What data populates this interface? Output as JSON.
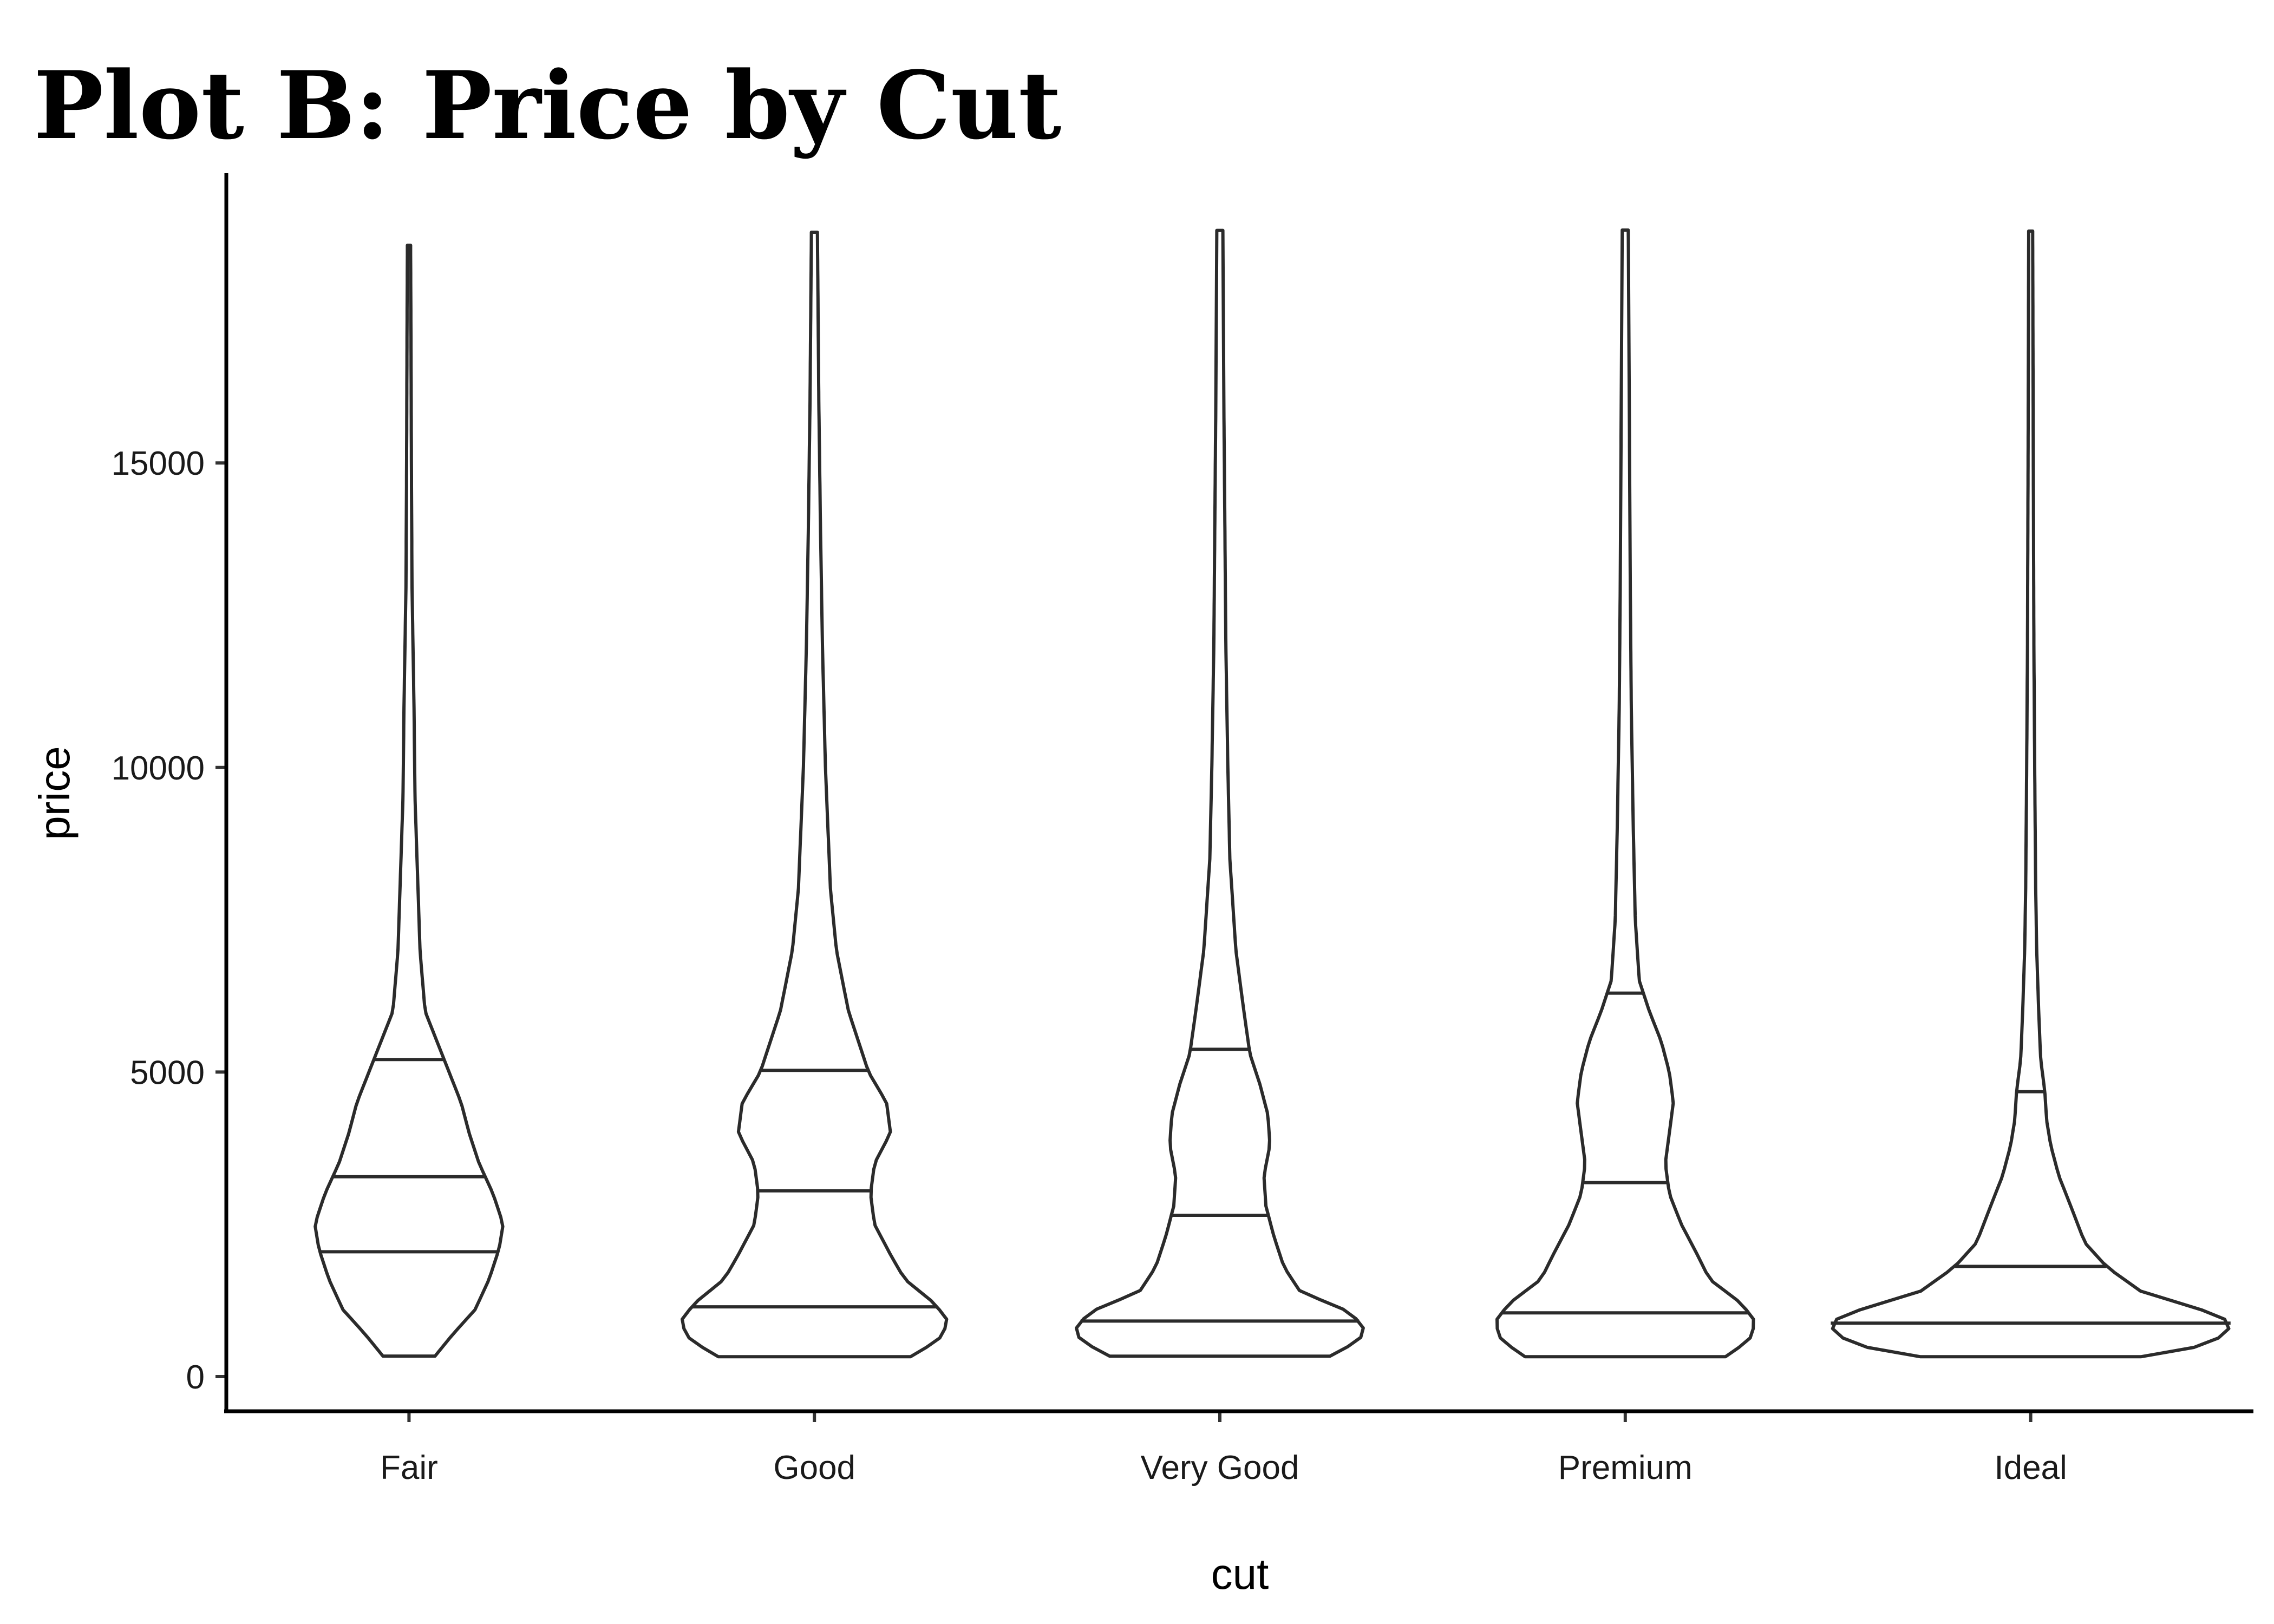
{
  "chart_data": {
    "type": "violin",
    "title": "Plot B: Price by Cut",
    "xlabel": "cut",
    "ylabel": "price",
    "ylim": [
      -600,
      19300
    ],
    "yticks": [
      0,
      5000,
      10000,
      15000
    ],
    "grid": false,
    "legend": "none",
    "categories": [
      "Fair",
      "Good",
      "Very Good",
      "Premium",
      "Ideal"
    ],
    "violins": [
      {
        "category": "Fair",
        "min": 337,
        "max": 18574,
        "quantiles": [
          2050,
          3282,
          5206
        ],
        "profile": [
          [
            337,
            0.13
          ],
          [
            700,
            0.22
          ],
          [
            1100,
            0.33
          ],
          [
            1600,
            0.4
          ],
          [
            2100,
            0.45
          ],
          [
            2500,
            0.47
          ],
          [
            3000,
            0.42
          ],
          [
            3500,
            0.35
          ],
          [
            4000,
            0.3
          ],
          [
            4500,
            0.26
          ],
          [
            5000,
            0.2
          ],
          [
            5500,
            0.14
          ],
          [
            6000,
            0.08
          ],
          [
            7000,
            0.055
          ],
          [
            8000,
            0.045
          ],
          [
            9500,
            0.03
          ],
          [
            11000,
            0.025
          ],
          [
            13000,
            0.015
          ],
          [
            15000,
            0.012
          ],
          [
            17000,
            0.01
          ],
          [
            18574,
            0.008
          ]
        ]
      },
      {
        "category": "Good",
        "min": 327,
        "max": 18788,
        "quantiles": [
          1145,
          3051,
          5028
        ],
        "profile": [
          [
            327,
            0.48
          ],
          [
            600,
            0.62
          ],
          [
            900,
            0.67
          ],
          [
            1200,
            0.6
          ],
          [
            1600,
            0.45
          ],
          [
            2000,
            0.38
          ],
          [
            2500,
            0.3
          ],
          [
            3000,
            0.28
          ],
          [
            3500,
            0.3
          ],
          [
            4000,
            0.38
          ],
          [
            4500,
            0.36
          ],
          [
            5000,
            0.27
          ],
          [
            5500,
            0.22
          ],
          [
            6000,
            0.17
          ],
          [
            7000,
            0.11
          ],
          [
            8000,
            0.08
          ],
          [
            10000,
            0.055
          ],
          [
            12000,
            0.04
          ],
          [
            14000,
            0.03
          ],
          [
            16000,
            0.022
          ],
          [
            18788,
            0.015
          ]
        ]
      },
      {
        "category": "Very Good",
        "min": 336,
        "max": 18818,
        "quantiles": [
          912,
          2648,
          5373
        ],
        "profile": [
          [
            336,
            0.55
          ],
          [
            600,
            0.7
          ],
          [
            850,
            0.72
          ],
          [
            1100,
            0.62
          ],
          [
            1400,
            0.4
          ],
          [
            1800,
            0.32
          ],
          [
            2300,
            0.27
          ],
          [
            2800,
            0.23
          ],
          [
            3300,
            0.22
          ],
          [
            3800,
            0.25
          ],
          [
            4300,
            0.24
          ],
          [
            4800,
            0.2
          ],
          [
            5300,
            0.15
          ],
          [
            6000,
            0.12
          ],
          [
            7000,
            0.08
          ],
          [
            8500,
            0.05
          ],
          [
            10000,
            0.04
          ],
          [
            12000,
            0.03
          ],
          [
            14000,
            0.025
          ],
          [
            16000,
            0.02
          ],
          [
            18818,
            0.015
          ]
        ]
      },
      {
        "category": "Premium",
        "min": 326,
        "max": 18823,
        "quantiles": [
          1046,
          3185,
          6296
        ],
        "profile": [
          [
            326,
            0.5
          ],
          [
            600,
            0.62
          ],
          [
            900,
            0.65
          ],
          [
            1200,
            0.58
          ],
          [
            1600,
            0.42
          ],
          [
            2000,
            0.36
          ],
          [
            2500,
            0.28
          ],
          [
            3000,
            0.22
          ],
          [
            3500,
            0.2
          ],
          [
            4000,
            0.22
          ],
          [
            4500,
            0.24
          ],
          [
            5000,
            0.22
          ],
          [
            5500,
            0.18
          ],
          [
            6000,
            0.12
          ],
          [
            6500,
            0.07
          ],
          [
            7500,
            0.05
          ],
          [
            9000,
            0.04
          ],
          [
            11000,
            0.03
          ],
          [
            13000,
            0.025
          ],
          [
            16000,
            0.02
          ],
          [
            18823,
            0.015
          ]
        ]
      },
      {
        "category": "Ideal",
        "min": 326,
        "max": 18806,
        "quantiles": [
          878,
          1810,
          4678
        ],
        "profile": [
          [
            326,
            0.55
          ],
          [
            500,
            0.85
          ],
          [
            700,
            0.98
          ],
          [
            900,
            1.0
          ],
          [
            1100,
            0.85
          ],
          [
            1400,
            0.55
          ],
          [
            1800,
            0.38
          ],
          [
            2200,
            0.27
          ],
          [
            2800,
            0.2
          ],
          [
            3300,
            0.14
          ],
          [
            3800,
            0.1
          ],
          [
            4200,
            0.08
          ],
          [
            4700,
            0.07
          ],
          [
            5200,
            0.05
          ],
          [
            6000,
            0.04
          ],
          [
            7000,
            0.03
          ],
          [
            8000,
            0.025
          ],
          [
            10000,
            0.02
          ],
          [
            12000,
            0.016
          ],
          [
            15000,
            0.013
          ],
          [
            18806,
            0.01
          ]
        ]
      }
    ]
  }
}
